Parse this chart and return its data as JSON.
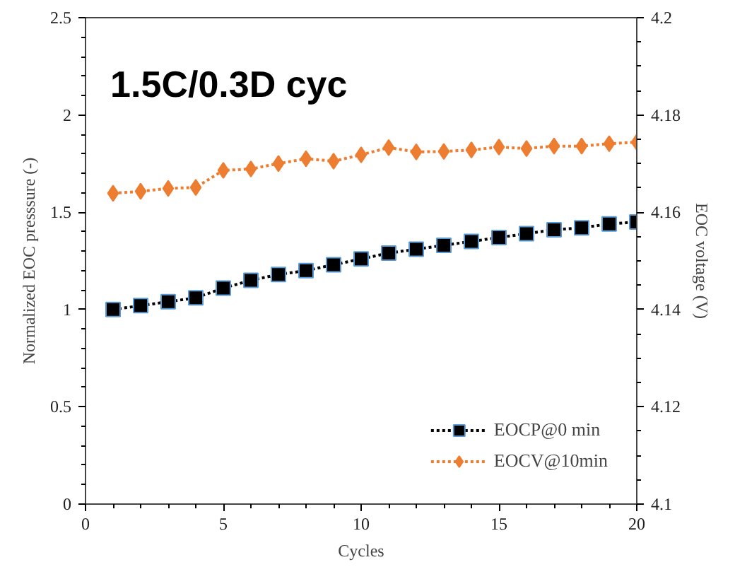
{
  "chart_data": {
    "type": "line",
    "title": "1.5C/0.3D cyc",
    "xlabel": "Cycles",
    "ylabel": "Normalized EOC presssure (-)",
    "y2label": "EOC voltage (V)",
    "x": [
      1,
      2,
      3,
      4,
      5,
      6,
      7,
      8,
      9,
      10,
      11,
      12,
      13,
      14,
      15,
      16,
      17,
      18,
      19,
      20
    ],
    "series": [
      {
        "name": "EOCP@0 min",
        "color": "#000000",
        "marker": "square",
        "values": [
          1.0,
          1.02,
          1.04,
          1.06,
          1.11,
          1.15,
          1.18,
          1.2,
          1.23,
          1.26,
          1.29,
          1.31,
          1.33,
          1.35,
          1.37,
          1.39,
          1.41,
          1.42,
          1.44,
          1.45
        ]
      },
      {
        "name": "EOCV@10min",
        "color": "#ed7d31",
        "marker": "diamond",
        "axis": "y2",
        "values": [
          4.1639,
          4.1643,
          4.1649,
          4.1651,
          4.1686,
          4.1689,
          4.17,
          4.171,
          4.1705,
          4.1718,
          4.1733,
          4.1724,
          4.1725,
          4.1728,
          4.1734,
          4.1731,
          4.1736,
          4.1736,
          4.1741,
          4.1744
        ]
      }
    ],
    "xlim": [
      0,
      20
    ],
    "xticks": [
      0,
      5,
      10,
      15,
      20
    ],
    "ylim": [
      0,
      2.5
    ],
    "yticks": [
      0,
      0.5,
      1,
      1.5,
      2,
      2.5
    ],
    "y2lim": [
      4.1,
      4.2
    ],
    "y2ticks": [
      4.1,
      4.12,
      4.14,
      4.16,
      4.18,
      4.2
    ],
    "line_style": "dotted",
    "legend": "bottom right",
    "grid": false
  }
}
